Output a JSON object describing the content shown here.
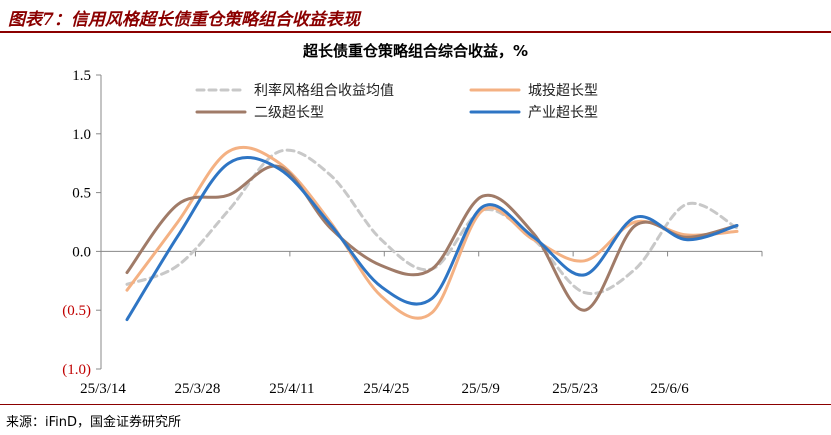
{
  "figure": {
    "title": "图表7：信用风格超长债重仓策略组合收益表现",
    "source": "来源：iFinD，国金证券研究所"
  },
  "chart_data": {
    "type": "line",
    "title": "超长债重仓策略组合综合收益，%",
    "xlabel": "",
    "ylabel": "",
    "ylim": [
      -1.0,
      1.5
    ],
    "y_ticks": [
      1.5,
      1.0,
      0.5,
      0.0,
      -0.5,
      -1.0
    ],
    "y_tick_labels": [
      "1.5",
      "1.0",
      "0.5",
      "0.0",
      "(0.5)",
      "(1.0)"
    ],
    "negative_label_color": "#c00000",
    "x_tick_labels": [
      "25/3/14",
      "25/3/28",
      "25/4/11",
      "25/4/25",
      "25/5/9",
      "25/5/23",
      "25/6/6"
    ],
    "grid": false,
    "legend_position": "top",
    "series": [
      {
        "name": "利率风格组合收益均值",
        "color": "#c8c8c8",
        "dash": true,
        "values": [
          -0.28,
          -0.12,
          0.35,
          0.85,
          0.65,
          0.1,
          -0.15,
          0.35,
          0.1,
          -0.35,
          -0.15,
          0.4,
          0.2
        ]
      },
      {
        "name": "城投超长型",
        "color": "#f4b183",
        "dash": false,
        "values": [
          -0.33,
          0.25,
          0.85,
          0.75,
          0.25,
          -0.38,
          -0.52,
          0.35,
          0.1,
          -0.08,
          0.25,
          0.14,
          0.17
        ]
      },
      {
        "name": "二级超长型",
        "color": "#a07b68",
        "dash": false,
        "values": [
          -0.18,
          0.4,
          0.48,
          0.72,
          0.2,
          -0.12,
          -0.15,
          0.47,
          0.15,
          -0.5,
          0.22,
          0.12,
          0.22
        ]
      },
      {
        "name": "产业超长型",
        "color": "#2e75c4",
        "dash": false,
        "values": [
          -0.58,
          0.13,
          0.75,
          0.7,
          0.23,
          -0.3,
          -0.4,
          0.38,
          0.12,
          -0.2,
          0.29,
          0.1,
          0.22
        ]
      }
    ]
  }
}
